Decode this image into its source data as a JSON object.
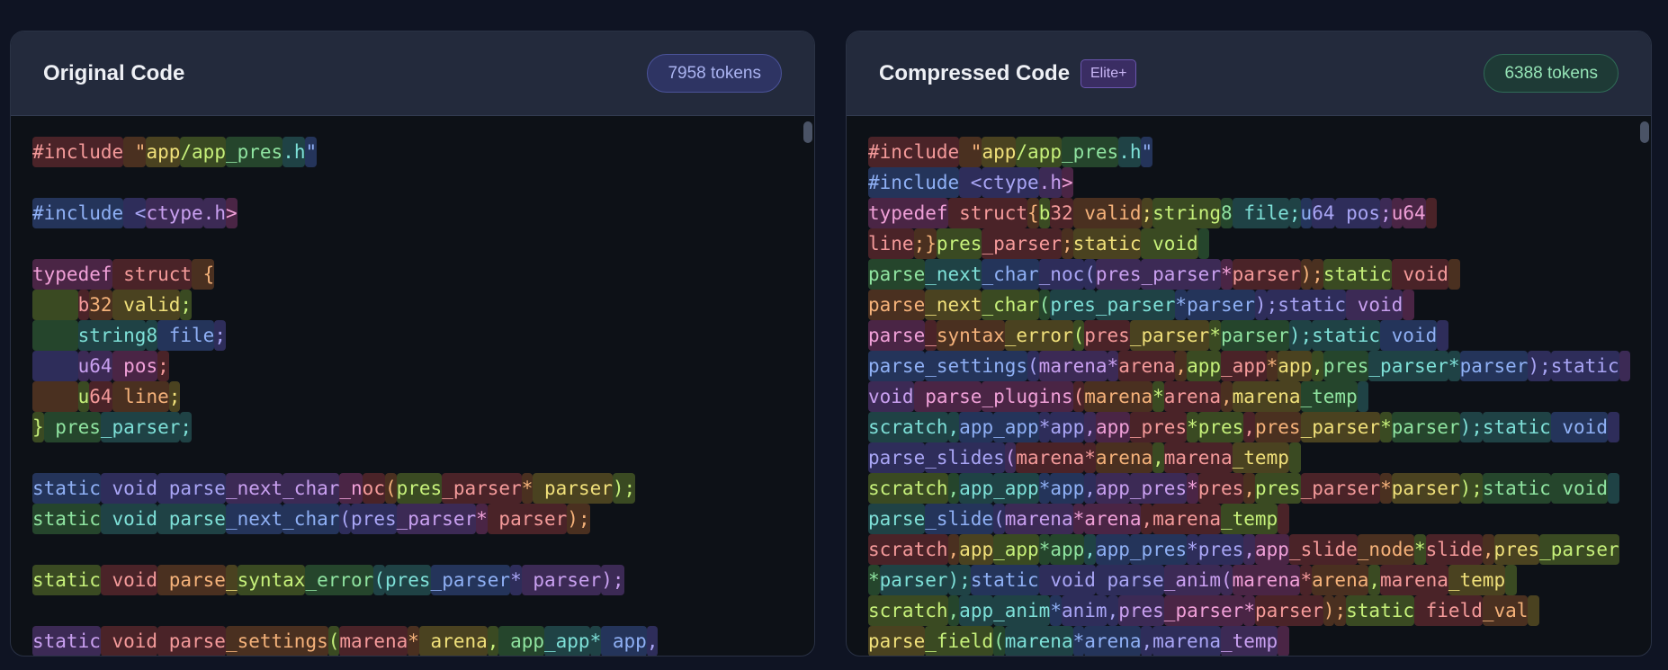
{
  "palette": [
    {
      "bg": "#4a2328",
      "fg": "#f49a9a"
    },
    {
      "bg": "#4a3020",
      "fg": "#f5b27a"
    },
    {
      "bg": "#4a4220",
      "fg": "#f0e07a"
    },
    {
      "bg": "#3a4a22",
      "fg": "#c6f07a"
    },
    {
      "bg": "#25452c",
      "fg": "#8fe3a0"
    },
    {
      "bg": "#1f4245",
      "fg": "#7ee0d8"
    },
    {
      "bg": "#24345a",
      "fg": "#8fb0f5"
    },
    {
      "bg": "#2e2d5a",
      "fg": "#a9a5f5"
    },
    {
      "bg": "#3c2a55",
      "fg": "#c9a0f0"
    },
    {
      "bg": "#4a2545",
      "fg": "#f0a0d8"
    }
  ],
  "original": {
    "title": "Original Code",
    "tokens_label": "7958 tokens",
    "lines": [
      [
        [
          "#include",
          0
        ],
        [
          " \"",
          1
        ],
        [
          "app",
          2
        ],
        [
          "/app",
          3
        ],
        [
          "_pres",
          4
        ],
        [
          ".h",
          5
        ],
        [
          "\"",
          6
        ]
      ],
      [],
      [
        [
          "#include",
          6
        ],
        [
          " <",
          7
        ],
        [
          "ctype",
          8
        ],
        [
          ".h",
          8
        ],
        [
          ">",
          9
        ]
      ],
      [],
      [
        [
          "typedef",
          9
        ],
        [
          " struct",
          0
        ],
        [
          " {",
          1
        ]
      ],
      [
        [
          "    ",
          3
        ],
        [
          "b",
          0
        ],
        [
          "32",
          1
        ],
        [
          " valid",
          2
        ],
        [
          ";",
          3
        ]
      ],
      [
        [
          "    ",
          4
        ],
        [
          "string",
          5
        ],
        [
          "8",
          5
        ],
        [
          " file",
          6
        ],
        [
          ";",
          7
        ]
      ],
      [
        [
          "    ",
          7
        ],
        [
          "u",
          8
        ],
        [
          "64",
          8
        ],
        [
          " pos",
          9
        ],
        [
          ";",
          0
        ]
      ],
      [
        [
          "    ",
          1
        ],
        [
          "u",
          3
        ],
        [
          "64",
          0
        ],
        [
          " line",
          1
        ],
        [
          ";",
          2
        ]
      ],
      [
        [
          "}",
          3
        ],
        [
          " pres",
          4
        ],
        [
          "_parser",
          5
        ],
        [
          ";",
          5
        ]
      ],
      [],
      [
        [
          "static",
          6
        ],
        [
          " void",
          7
        ],
        [
          " parse",
          7
        ],
        [
          "_next",
          8
        ],
        [
          "_char",
          8
        ],
        [
          "_n",
          9
        ],
        [
          "oc",
          0
        ],
        [
          "(",
          1
        ],
        [
          "pres",
          3
        ],
        [
          "_parser",
          0
        ],
        [
          "*",
          1
        ],
        [
          " parser",
          2
        ],
        [
          ");",
          3
        ]
      ],
      [
        [
          "static",
          4
        ],
        [
          " void",
          5
        ],
        [
          " parse",
          5
        ],
        [
          "_next",
          6
        ],
        [
          "_char",
          6
        ],
        [
          "(",
          7
        ],
        [
          "pres",
          7
        ],
        [
          "_parser",
          8
        ],
        [
          "*",
          9
        ],
        [
          " parser",
          0
        ],
        [
          ");",
          1
        ]
      ],
      [],
      [
        [
          "static",
          3
        ],
        [
          " void",
          0
        ],
        [
          " parse",
          1
        ],
        [
          "_",
          2
        ],
        [
          "syntax",
          3
        ],
        [
          "_error",
          4
        ],
        [
          "(",
          5
        ],
        [
          "pres",
          5
        ],
        [
          "_parser",
          6
        ],
        [
          "*",
          7
        ],
        [
          " parser",
          8
        ],
        [
          ");",
          8
        ]
      ],
      [],
      [
        [
          "static",
          8
        ],
        [
          " void",
          0
        ],
        [
          " parse",
          0
        ],
        [
          "_settings",
          1
        ],
        [
          "(",
          3
        ],
        [
          "marena",
          0
        ],
        [
          "*",
          1
        ],
        [
          " arena",
          2
        ],
        [
          ",",
          3
        ],
        [
          " app",
          4
        ],
        [
          "_app",
          5
        ],
        [
          "*",
          5
        ],
        [
          " app",
          6
        ],
        [
          ",",
          7
        ]
      ]
    ]
  },
  "compressed": {
    "title": "Compressed Code",
    "badge": "Elite+",
    "tokens_label": "6388 tokens",
    "lines": [
      [
        [
          "#include",
          0
        ],
        [
          " \"",
          1
        ],
        [
          "app",
          2
        ],
        [
          "/app",
          3
        ],
        [
          "_pres",
          4
        ],
        [
          ".h",
          5
        ],
        [
          "\"",
          6
        ]
      ],
      [
        [
          "#include",
          6
        ],
        [
          " <",
          7
        ],
        [
          "ctype",
          7
        ],
        [
          ".h",
          8
        ],
        [
          ">",
          9
        ]
      ],
      [
        [
          "typedef",
          9
        ],
        [
          " struct",
          0
        ],
        [
          "{",
          1
        ],
        [
          "b",
          3
        ],
        [
          "32",
          0
        ],
        [
          " valid",
          1
        ],
        [
          ";",
          2
        ],
        [
          "string",
          3
        ],
        [
          "8",
          4
        ],
        [
          " file",
          5
        ],
        [
          ";",
          5
        ],
        [
          "u",
          6
        ],
        [
          "64",
          7
        ],
        [
          " pos",
          7
        ],
        [
          ";",
          8
        ],
        [
          "u",
          9
        ],
        [
          "64",
          9
        ],
        [
          " ",
          0
        ]
      ],
      [
        [
          "line",
          0
        ],
        [
          ";}",
          1
        ],
        [
          "pres",
          3
        ],
        [
          "_parser",
          0
        ],
        [
          ";",
          1
        ],
        [
          "static",
          2
        ],
        [
          " void",
          3
        ],
        [
          " ",
          4
        ]
      ],
      [
        [
          "parse",
          4
        ],
        [
          "_next",
          5
        ],
        [
          "_char",
          6
        ],
        [
          "_noc",
          7
        ],
        [
          "(",
          7
        ],
        [
          "pres",
          8
        ],
        [
          "_parser",
          8
        ],
        [
          "*",
          9
        ],
        [
          "parser",
          0
        ],
        [
          ")",
          1
        ],
        [
          ";",
          1
        ],
        [
          "static",
          3
        ],
        [
          " void",
          0
        ],
        [
          " ",
          1
        ]
      ],
      [
        [
          "parse",
          1
        ],
        [
          "_next",
          2
        ],
        [
          "_char",
          3
        ],
        [
          "(",
          4
        ],
        [
          "pres",
          5
        ],
        [
          "_parser",
          5
        ],
        [
          "*",
          6
        ],
        [
          "parser",
          6
        ],
        [
          ")",
          7
        ],
        [
          ";static",
          7
        ],
        [
          " void",
          8
        ],
        [
          " ",
          9
        ]
      ],
      [
        [
          "parse",
          9
        ],
        [
          "_",
          0
        ],
        [
          "syntax",
          1
        ],
        [
          "_error",
          2
        ],
        [
          "(",
          3
        ],
        [
          "pres",
          0
        ],
        [
          "_parser",
          2
        ],
        [
          "*",
          3
        ],
        [
          "parser",
          4
        ],
        [
          ");",
          5
        ],
        [
          "static",
          5
        ],
        [
          " void",
          6
        ],
        [
          " ",
          7
        ]
      ],
      [
        [
          "parse",
          6
        ],
        [
          "_settings",
          6
        ],
        [
          "(",
          7
        ],
        [
          "marena",
          8
        ],
        [
          "*",
          8
        ],
        [
          "arena",
          0
        ],
        [
          ",",
          1
        ],
        [
          "app",
          3
        ],
        [
          "_app",
          0
        ],
        [
          "*",
          1
        ],
        [
          "app",
          2
        ],
        [
          ",",
          3
        ],
        [
          "pres",
          4
        ],
        [
          "_parser",
          5
        ],
        [
          "*",
          5
        ],
        [
          "parser",
          6
        ],
        [
          ");",
          7
        ],
        [
          "static",
          7
        ],
        [
          " ",
          8
        ]
      ],
      [
        [
          "void",
          8
        ],
        [
          " parse",
          9
        ],
        [
          "_plugins",
          9
        ],
        [
          "(",
          0
        ],
        [
          "marena",
          1
        ],
        [
          "*",
          3
        ],
        [
          "arena",
          0
        ],
        [
          ",",
          1
        ],
        [
          "marena",
          2
        ],
        [
          "_temp",
          4
        ],
        [
          " ",
          5
        ]
      ],
      [
        [
          "scratch",
          5
        ],
        [
          ",",
          5
        ],
        [
          "app",
          6
        ],
        [
          "_app",
          6
        ],
        [
          "*",
          7
        ],
        [
          "app",
          7
        ],
        [
          ",",
          8
        ],
        [
          "app",
          9
        ],
        [
          "_pres",
          0
        ],
        [
          "*",
          3
        ],
        [
          "pres",
          3
        ],
        [
          ",",
          0
        ],
        [
          "pres",
          1
        ],
        [
          "_parser",
          2
        ],
        [
          "*",
          3
        ],
        [
          "parser",
          4
        ],
        [
          ");",
          5
        ],
        [
          "static",
          5
        ],
        [
          " void",
          6
        ],
        [
          " ",
          7
        ]
      ],
      [
        [
          "parse",
          7
        ],
        [
          "_slides",
          7
        ],
        [
          "(",
          8
        ],
        [
          "marena",
          0
        ],
        [
          "*",
          0
        ],
        [
          "arena",
          1
        ],
        [
          ",",
          3
        ],
        [
          "marena",
          0
        ],
        [
          "_temp",
          2
        ],
        [
          " ",
          3
        ]
      ],
      [
        [
          "scratch",
          3
        ],
        [
          ",",
          4
        ],
        [
          "app",
          5
        ],
        [
          "_app",
          5
        ],
        [
          "*",
          6
        ],
        [
          "app",
          6
        ],
        [
          ",",
          7
        ],
        [
          "app",
          8
        ],
        [
          "_pres",
          8
        ],
        [
          "*",
          9
        ],
        [
          "pres",
          0
        ],
        [
          ",",
          1
        ],
        [
          "pres",
          3
        ],
        [
          "_parser",
          0
        ],
        [
          "*",
          1
        ],
        [
          "parser",
          2
        ],
        [
          ");",
          3
        ],
        [
          "static",
          4
        ],
        [
          " void",
          4
        ],
        [
          " ",
          5
        ]
      ],
      [
        [
          "parse",
          5
        ],
        [
          "_slide",
          6
        ],
        [
          "(",
          7
        ],
        [
          "marena",
          8
        ],
        [
          "*",
          9
        ],
        [
          "arena",
          9
        ],
        [
          ",",
          0
        ],
        [
          "marena",
          0
        ],
        [
          "_temp",
          3
        ],
        [
          " ",
          0
        ]
      ],
      [
        [
          "scratch",
          0
        ],
        [
          ",",
          1
        ],
        [
          "app",
          2
        ],
        [
          "_app",
          3
        ],
        [
          "*",
          4
        ],
        [
          "app",
          4
        ],
        [
          ",",
          5
        ],
        [
          "app",
          6
        ],
        [
          "_pres",
          6
        ],
        [
          "*",
          7
        ],
        [
          "pres",
          7
        ],
        [
          ",",
          8
        ],
        [
          "app",
          9
        ],
        [
          "_slide",
          0
        ],
        [
          "_node",
          1
        ],
        [
          "*",
          3
        ],
        [
          "slide",
          0
        ],
        [
          ",",
          1
        ],
        [
          "pres",
          2
        ],
        [
          "_parser",
          3
        ]
      ],
      [
        [
          "*",
          4
        ],
        [
          "parser",
          5
        ],
        [
          ");",
          5
        ],
        [
          "static",
          6
        ],
        [
          " void",
          7
        ],
        [
          " parse",
          7
        ],
        [
          "_anim",
          8
        ],
        [
          "(",
          8
        ],
        [
          "marena",
          9
        ],
        [
          "*",
          0
        ],
        [
          "arena",
          1
        ],
        [
          ",",
          3
        ],
        [
          "marena",
          0
        ],
        [
          "_temp",
          2
        ],
        [
          " ",
          3
        ]
      ],
      [
        [
          "scratch",
          3
        ],
        [
          ",",
          4
        ],
        [
          "app",
          5
        ],
        [
          "_anim",
          5
        ],
        [
          "*",
          6
        ],
        [
          "anim",
          7
        ],
        [
          ",",
          7
        ],
        [
          "pres",
          8
        ],
        [
          "_parser",
          9
        ],
        [
          "*",
          9
        ],
        [
          "parser",
          0
        ],
        [
          ")",
          1
        ],
        [
          ";",
          1
        ],
        [
          "static",
          3
        ],
        [
          " field",
          0
        ],
        [
          "_val",
          1
        ],
        [
          " ",
          2
        ]
      ],
      [
        [
          "parse",
          2
        ],
        [
          "_field",
          3
        ],
        [
          "(",
          4
        ],
        [
          "marena",
          5
        ],
        [
          "*",
          6
        ],
        [
          "arena",
          6
        ],
        [
          ",",
          7
        ],
        [
          "marena",
          7
        ],
        [
          "_temp",
          8
        ],
        [
          " ",
          9
        ]
      ]
    ]
  }
}
